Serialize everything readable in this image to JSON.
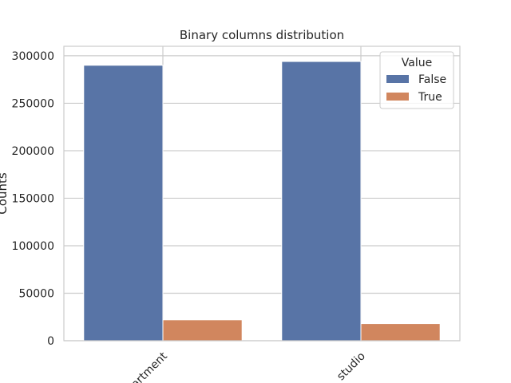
{
  "chart_data": {
    "type": "bar",
    "title": "Binary columns distribution",
    "xlabel": "",
    "ylabel": "Counts",
    "categories": [
      "apartment",
      "studio"
    ],
    "series": [
      {
        "name": "False",
        "color": "#5874a6",
        "values": [
          290000,
          294000
        ]
      },
      {
        "name": "True",
        "color": "#d1865e",
        "values": [
          22000,
          18000
        ]
      }
    ],
    "ylim": [
      0,
      310000
    ],
    "yticks": [
      0,
      50000,
      100000,
      150000,
      200000,
      250000,
      300000
    ],
    "legend": {
      "title": "Value",
      "placement": "top-right"
    },
    "grid": true,
    "xtick_rotation": -45
  }
}
